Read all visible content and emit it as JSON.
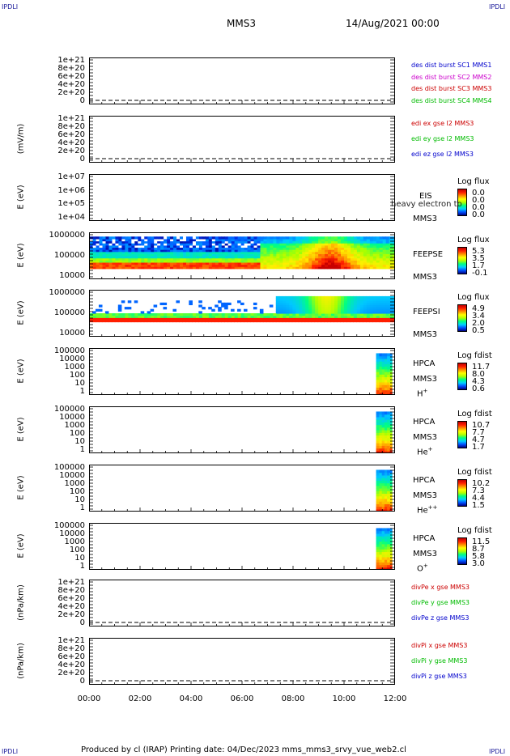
{
  "corners": {
    "tl": "IPDLI",
    "tr": "IPDLI",
    "bl": "IPDLI",
    "br": "IPDLI"
  },
  "header": {
    "spacecraft": "MMS3",
    "datetime": "14/Aug/2021 00:00"
  },
  "footer": {
    "text": "Produced by cl (IRAP)    Printing date: 04/Dec/2023    mms_mms3_srvy_vue_web2.cl"
  },
  "chart_data": [
    {
      "type": "line",
      "ylabel": "",
      "yticks": [
        "1e+21",
        "8e+20",
        "6e+20",
        "4e+20",
        "2e+20",
        "0"
      ],
      "legend": [
        {
          "name": "des dist burst SC1 MMS1",
          "color": "#0000cc"
        },
        {
          "name": "des dist burst SC2 MMS2",
          "color": "#cc00cc"
        },
        {
          "name": "des dist burst SC3 MMS3",
          "color": "#cc0000"
        },
        {
          "name": "des dist burst SC4 MMS4",
          "color": "#00bb00"
        }
      ],
      "series": [],
      "zero_line": "dashed"
    },
    {
      "type": "line",
      "ylabel": "(mV/m)",
      "yticks": [
        "1e+21",
        "8e+20",
        "6e+20",
        "4e+20",
        "2e+20",
        "0"
      ],
      "legend": [
        {
          "name": "edi ex gse l2 MMS3",
          "color": "#cc0000"
        },
        {
          "name": "edi ey gse l2 MMS3",
          "color": "#00bb00"
        },
        {
          "name": "edi ez gse l2 MMS3",
          "color": "#0000cc"
        }
      ],
      "series": [],
      "zero_line": "dashed"
    },
    {
      "type": "heatmap",
      "ylabel": "E (eV)",
      "yticks": [
        "1e+07",
        "1e+06",
        "1e+05",
        "1e+04"
      ],
      "log_scale": true,
      "instrument": [
        "EIS",
        "MMS3"
      ],
      "overlay_text": "heavy electron to",
      "colorbar": {
        "title": "Log flux",
        "ticks": [
          "0.0",
          "0.0",
          "0.0",
          "0.0"
        ]
      },
      "data": "empty"
    },
    {
      "type": "heatmap",
      "ylabel": "E (eV)",
      "yticks": [
        "1000000",
        "100000",
        "10000"
      ],
      "log_scale": true,
      "instrument": [
        "FEEPSE",
        "MMS3"
      ],
      "colorbar": {
        "title": "Log flux",
        "ticks": [
          "5.3",
          "3.5",
          "1.7",
          "-0.1"
        ]
      },
      "time_range": [
        "00:00",
        "12:00"
      ]
    },
    {
      "type": "heatmap",
      "ylabel": "E (eV)",
      "yticks": [
        "1000000",
        "100000",
        "10000"
      ],
      "log_scale": true,
      "instrument": [
        "FEEPSI",
        "MMS3"
      ],
      "colorbar": {
        "title": "Log flux",
        "ticks": [
          "4.9",
          "3.4",
          "2.0",
          "0.5"
        ]
      },
      "time_range": [
        "00:00",
        "12:00"
      ]
    },
    {
      "type": "heatmap",
      "ylabel": "E (eV)",
      "yticks": [
        "100000",
        "10000",
        "1000",
        "100",
        "10",
        "1"
      ],
      "log_scale": true,
      "instrument": [
        "HPCA",
        "MMS3",
        "H+"
      ],
      "colorbar": {
        "title": "Log fdist",
        "ticks": [
          "11.7",
          "8.0",
          "4.3",
          "0.6"
        ]
      },
      "data_start": "11:15",
      "data_end": "12:00"
    },
    {
      "type": "heatmap",
      "ylabel": "E (eV)",
      "yticks": [
        "100000",
        "10000",
        "1000",
        "100",
        "10",
        "1"
      ],
      "log_scale": true,
      "instrument": [
        "HPCA",
        "MMS3",
        "He+"
      ],
      "colorbar": {
        "title": "Log fdist",
        "ticks": [
          "10.7",
          "7.7",
          "4.7",
          "1.7"
        ]
      },
      "data_start": "11:15",
      "data_end": "12:00"
    },
    {
      "type": "heatmap",
      "ylabel": "E (eV)",
      "yticks": [
        "100000",
        "10000",
        "1000",
        "100",
        "10",
        "1"
      ],
      "log_scale": true,
      "instrument": [
        "HPCA",
        "MMS3",
        "He++"
      ],
      "colorbar": {
        "title": "Log fdist",
        "ticks": [
          "10.2",
          "7.3",
          "4.4",
          "1.5"
        ]
      },
      "data_start": "11:15",
      "data_end": "12:00"
    },
    {
      "type": "heatmap",
      "ylabel": "E (eV)",
      "yticks": [
        "100000",
        "10000",
        "1000",
        "100",
        "10",
        "1"
      ],
      "log_scale": true,
      "instrument": [
        "HPCA",
        "MMS3",
        "O+"
      ],
      "colorbar": {
        "title": "Log fdist",
        "ticks": [
          "11.5",
          "8.7",
          "5.8",
          "3.0"
        ]
      },
      "data_start": "11:15",
      "data_end": "12:00"
    },
    {
      "type": "line",
      "ylabel": "(nPa/km)",
      "yticks": [
        "1e+21",
        "8e+20",
        "6e+20",
        "4e+20",
        "2e+20",
        "0"
      ],
      "legend": [
        {
          "name": "divPe x gse MMS3",
          "color": "#cc0000"
        },
        {
          "name": "divPe y gse MMS3",
          "color": "#00bb00"
        },
        {
          "name": "divPe z gse MMS3",
          "color": "#0000cc"
        }
      ],
      "series": [],
      "zero_line": "dashed"
    },
    {
      "type": "line",
      "ylabel": "(nPa/km)",
      "yticks": [
        "1e+21",
        "8e+20",
        "6e+20",
        "4e+20",
        "2e+20",
        "0"
      ],
      "legend": [
        {
          "name": "divPi x gse MMS3",
          "color": "#cc0000"
        },
        {
          "name": "divPi y gse MMS3",
          "color": "#00bb00"
        },
        {
          "name": "divPi z gse MMS3",
          "color": "#0000cc"
        }
      ],
      "series": [],
      "zero_line": "dashed"
    }
  ],
  "xaxis": {
    "ticks": [
      "00:00",
      "02:00",
      "04:00",
      "06:00",
      "08:00",
      "10:00",
      "12:00"
    ]
  }
}
